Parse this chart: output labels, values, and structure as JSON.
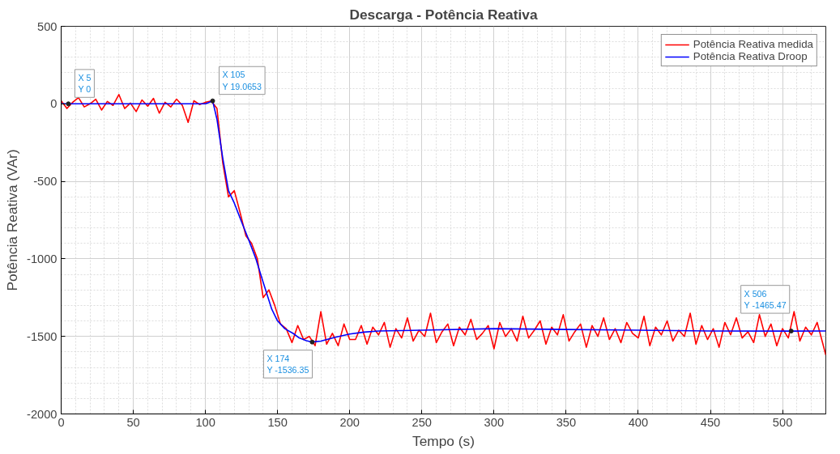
{
  "chart_data": {
    "type": "line",
    "title": "Descarga - Potência Reativa",
    "xlabel": "Tempo (s)",
    "ylabel": "Potência Reativa (VAr)",
    "xlim": [
      0,
      530
    ],
    "ylim": [
      -2000,
      500
    ],
    "xticks": [
      0,
      50,
      100,
      150,
      200,
      250,
      300,
      350,
      400,
      450,
      500
    ],
    "yticks": [
      -2000,
      -1500,
      -1000,
      -500,
      0,
      500
    ],
    "grid": true,
    "legend": "top right",
    "line_style": "solid",
    "marker": "none",
    "series": [
      {
        "name": "Potência Reativa medida",
        "color": "#ff0000",
        "x": [
          0,
          4,
          8,
          12,
          16,
          20,
          24,
          28,
          32,
          36,
          40,
          44,
          48,
          52,
          56,
          60,
          64,
          68,
          72,
          76,
          80,
          84,
          88,
          92,
          96,
          100,
          104,
          108,
          112,
          116,
          120,
          124,
          128,
          132,
          136,
          140,
          144,
          148,
          152,
          156,
          160,
          164,
          168,
          172,
          176,
          180,
          184,
          188,
          192,
          196,
          200,
          204,
          208,
          212,
          216,
          220,
          224,
          228,
          232,
          236,
          240,
          244,
          248,
          252,
          256,
          260,
          264,
          268,
          272,
          276,
          280,
          284,
          288,
          292,
          296,
          300,
          304,
          308,
          312,
          316,
          320,
          324,
          328,
          332,
          336,
          340,
          344,
          348,
          352,
          356,
          360,
          364,
          368,
          372,
          376,
          380,
          384,
          388,
          392,
          396,
          400,
          404,
          408,
          412,
          416,
          420,
          424,
          428,
          432,
          436,
          440,
          444,
          448,
          452,
          456,
          460,
          464,
          468,
          472,
          476,
          480,
          484,
          488,
          492,
          496,
          500,
          504,
          508,
          512,
          516,
          520,
          524,
          528,
          530
        ],
        "values": [
          20,
          -30,
          10,
          40,
          -20,
          0,
          30,
          -40,
          15,
          -10,
          60,
          -30,
          5,
          -50,
          25,
          -15,
          35,
          -60,
          10,
          -20,
          30,
          -10,
          -120,
          20,
          -5,
          10,
          19,
          -30,
          -380,
          -600,
          -560,
          -700,
          -850,
          -900,
          -1000,
          -1250,
          -1200,
          -1300,
          -1420,
          -1450,
          -1540,
          -1430,
          -1520,
          -1500,
          -1560,
          -1340,
          -1550,
          -1480,
          -1560,
          -1420,
          -1520,
          -1520,
          -1430,
          -1550,
          -1440,
          -1490,
          -1410,
          -1570,
          -1450,
          -1510,
          -1380,
          -1530,
          -1460,
          -1500,
          -1350,
          -1540,
          -1470,
          -1420,
          -1560,
          -1440,
          -1490,
          -1390,
          -1520,
          -1480,
          -1430,
          -1580,
          -1410,
          -1500,
          -1450,
          -1530,
          -1370,
          -1510,
          -1460,
          -1400,
          -1550,
          -1440,
          -1490,
          -1360,
          -1530,
          -1470,
          -1420,
          -1570,
          -1430,
          -1500,
          -1380,
          -1520,
          -1450,
          -1540,
          -1410,
          -1480,
          -1510,
          -1370,
          -1560,
          -1440,
          -1490,
          -1400,
          -1530,
          -1460,
          -1500,
          -1350,
          -1550,
          -1430,
          -1520,
          -1450,
          -1570,
          -1410,
          -1490,
          -1380,
          -1510,
          -1470,
          -1540,
          -1360,
          -1500,
          -1420,
          -1560,
          -1450,
          -1510,
          -1340,
          -1530,
          -1440,
          -1490,
          -1410,
          -1550,
          -1620
        ]
      },
      {
        "name": "Potência Reativa Droop",
        "color": "#0000ff",
        "x": [
          0,
          5,
          100,
          105,
          108,
          112,
          116,
          120,
          125,
          129,
          135,
          140,
          146,
          150,
          155,
          161,
          165,
          170,
          174,
          180,
          190,
          200,
          210,
          220,
          250,
          300,
          350,
          400,
          450,
          506,
          530
        ],
        "values": [
          0,
          0,
          0,
          19.0653,
          -100,
          -350,
          -560,
          -640,
          -760,
          -853,
          -1000,
          -1150,
          -1325,
          -1400,
          -1450,
          -1482,
          -1510,
          -1528,
          -1536.35,
          -1530,
          -1505,
          -1485,
          -1472,
          -1465,
          -1460,
          -1450,
          -1455,
          -1460,
          -1465,
          -1465.47,
          -1465
        ]
      }
    ],
    "annotations": [
      {
        "text": "X 5\nY 0",
        "x": 5,
        "y": 0
      },
      {
        "text": "X 105\nY 19.0653",
        "x": 105,
        "y": 19.0653
      },
      {
        "text": "X 174\nY -1536.35",
        "x": 174,
        "y": -1536.35
      },
      {
        "text": "X 506\nY -1465.47",
        "x": 506,
        "y": -1465.47
      }
    ]
  }
}
